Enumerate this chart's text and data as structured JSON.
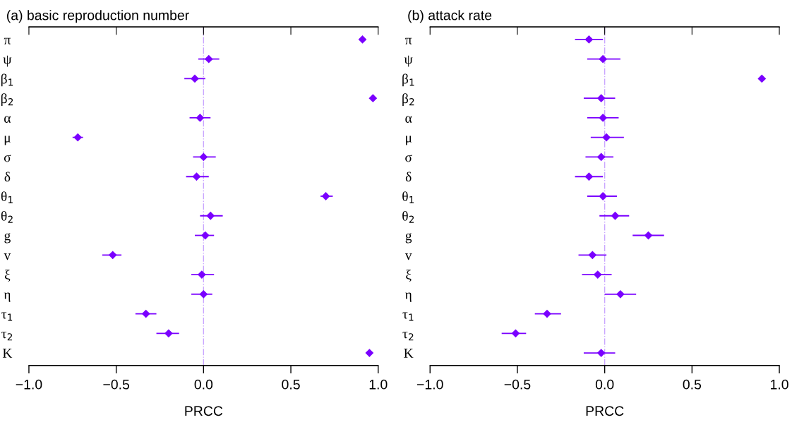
{
  "chart_data": [
    {
      "type": "scatter",
      "orientation": "horizontal",
      "title": "(a) basic reproduction number",
      "xlabel": "PRCC",
      "categories": [
        "π",
        "ψ",
        "β$_{1}$",
        "β$_{2}$",
        "α",
        "μ",
        "σ",
        "δ",
        "θ$_{1}$",
        "θ$_{2}$",
        "g",
        "v",
        "ξ",
        "η",
        "τ$_{1}$",
        "τ$_{2}$",
        "K"
      ],
      "series": [
        {
          "color": "#7a00ff",
          "values": [
            0.91,
            0.03,
            -0.05,
            0.97,
            -0.02,
            -0.72,
            0.0,
            -0.04,
            0.7,
            0.04,
            0.01,
            -0.52,
            -0.01,
            0.0,
            -0.33,
            -0.2,
            0.95
          ],
          "errors": [
            null,
            [
              -0.03,
              0.09
            ],
            [
              -0.11,
              0.01
            ],
            null,
            [
              -0.08,
              0.04
            ],
            [
              -0.75,
              -0.69
            ],
            [
              -0.06,
              0.07
            ],
            [
              -0.1,
              0.03
            ],
            [
              0.67,
              0.74
            ],
            [
              -0.02,
              0.11
            ],
            [
              -0.05,
              0.06
            ],
            [
              -0.58,
              -0.47
            ],
            [
              -0.07,
              0.06
            ],
            [
              -0.07,
              0.05
            ],
            [
              -0.39,
              -0.27
            ],
            [
              -0.27,
              -0.14
            ],
            null
          ]
        }
      ],
      "marker": "diamond",
      "xlim": [
        -1.0,
        1.0
      ],
      "xticks": [
        {
          "value": -1.0,
          "label": "−1.0"
        },
        {
          "value": -0.5,
          "label": "−0.5"
        },
        {
          "value": 0.0,
          "label": "0.0"
        },
        {
          "value": 0.5,
          "label": "0.5"
        },
        {
          "value": 1.0,
          "label": "1.0"
        }
      ],
      "ref_lines": [
        {
          "axis": "x",
          "value": 0,
          "color": "#c9a6ff",
          "line_style": "dashdot"
        }
      ],
      "grid": false,
      "legend": false
    },
    {
      "type": "scatter",
      "orientation": "horizontal",
      "title": "(b) attack rate",
      "xlabel": "PRCC",
      "categories": [
        "π",
        "ψ",
        "β$_{1}$",
        "β$_{2}$",
        "α",
        "μ",
        "σ",
        "δ",
        "θ$_{1}$",
        "θ$_{2}$",
        "g",
        "v",
        "ξ",
        "η",
        "τ$_{1}$",
        "τ$_{2}$",
        "K"
      ],
      "series": [
        {
          "color": "#7a00ff",
          "values": [
            -0.09,
            -0.01,
            0.9,
            -0.02,
            -0.01,
            0.01,
            -0.02,
            -0.09,
            -0.01,
            0.06,
            0.25,
            -0.07,
            -0.04,
            0.09,
            -0.33,
            -0.51,
            -0.02
          ],
          "errors": [
            [
              -0.17,
              -0.01
            ],
            [
              -0.1,
              0.09
            ],
            null,
            [
              -0.12,
              0.06
            ],
            [
              -0.1,
              0.08
            ],
            [
              -0.08,
              0.11
            ],
            [
              -0.11,
              0.05
            ],
            [
              -0.17,
              -0.01
            ],
            [
              -0.1,
              0.07
            ],
            [
              -0.03,
              0.14
            ],
            [
              0.16,
              0.34
            ],
            [
              -0.15,
              0.01
            ],
            [
              -0.13,
              0.04
            ],
            [
              0.0,
              0.18
            ],
            [
              -0.4,
              -0.25
            ],
            [
              -0.59,
              -0.45
            ],
            [
              -0.12,
              0.06
            ]
          ]
        }
      ],
      "marker": "diamond",
      "xlim": [
        -1.0,
        1.0
      ],
      "xticks": [
        {
          "value": -1.0,
          "label": "−1.0"
        },
        {
          "value": -0.5,
          "label": "−0.5"
        },
        {
          "value": 0.0,
          "label": "0.0"
        },
        {
          "value": 0.5,
          "label": "0.5"
        },
        {
          "value": 1.0,
          "label": "1.0"
        }
      ],
      "ref_lines": [
        {
          "axis": "x",
          "value": 0,
          "color": "#c9a6ff",
          "line_style": "dashdot"
        }
      ],
      "grid": false,
      "legend": false
    }
  ]
}
